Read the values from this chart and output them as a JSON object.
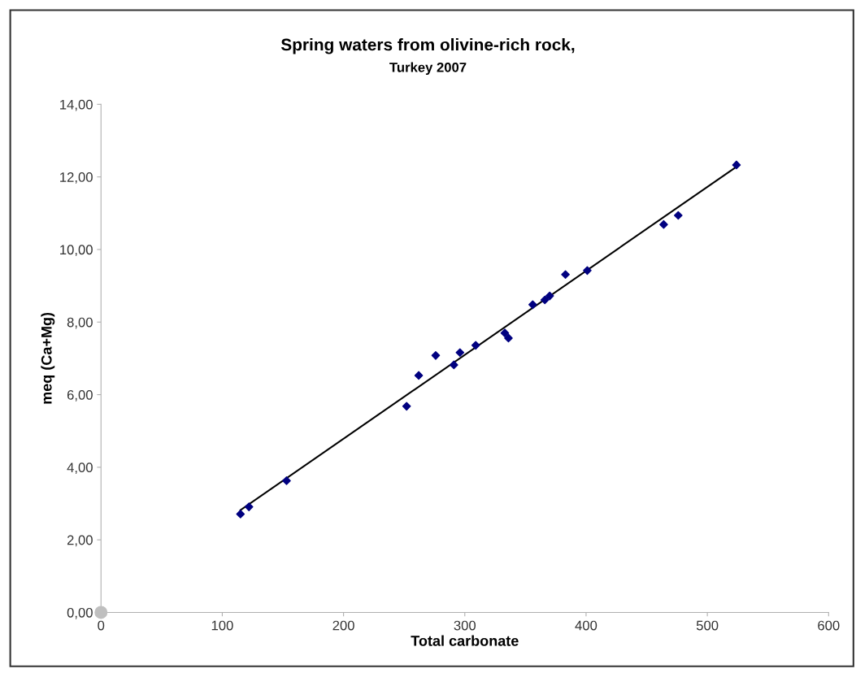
{
  "chart_data": {
    "type": "scatter",
    "title": "Spring waters from olivine-rich rock,",
    "subtitle": "Turkey 2007",
    "xlabel": "Total carbonate",
    "ylabel": "meq (Ca+Mg)",
    "series": [
      {
        "color": "#000080",
        "marker": "diamond",
        "x": [
          115,
          122,
          153,
          252,
          262,
          276,
          291,
          296,
          309,
          333,
          336,
          356,
          366,
          370,
          383,
          401,
          464,
          476,
          524
        ],
        "values": [
          2.71,
          2.91,
          3.63,
          5.68,
          6.53,
          7.08,
          6.82,
          7.16,
          7.36,
          7.7,
          7.56,
          8.48,
          8.61,
          8.72,
          9.31,
          9.42,
          10.69,
          10.94,
          12.33
        ]
      },
      {
        "type": "line",
        "color": "#000000",
        "marker": "none",
        "x": [
          115,
          524
        ],
        "values": [
          2.82,
          12.28
        ]
      },
      {
        "color": "#bfbfbf",
        "marker": "circle",
        "x": [
          0
        ],
        "values": [
          0
        ]
      }
    ],
    "xlim": [
      0,
      600
    ],
    "xticks": [
      0,
      100,
      200,
      300,
      400,
      500,
      600
    ],
    "ylim": [
      0,
      14
    ],
    "yticks": [
      {
        "value": 0,
        "label": "0,00"
      },
      {
        "value": 2,
        "label": "2,00"
      },
      {
        "value": 4,
        "label": "4,00"
      },
      {
        "value": 6,
        "label": "6,00"
      },
      {
        "value": 8,
        "label": "8,00"
      },
      {
        "value": 10,
        "label": "10,00"
      },
      {
        "value": 12,
        "label": "12,00"
      },
      {
        "value": 14,
        "label": "14,00"
      }
    ],
    "grid": false
  }
}
